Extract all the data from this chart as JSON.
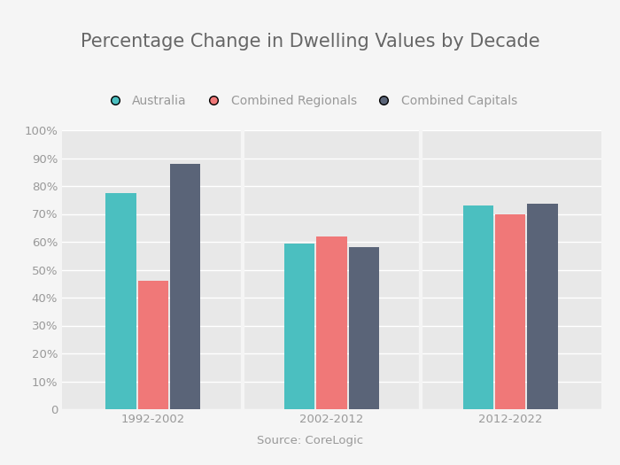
{
  "title": "Percentage Change in Dwelling Values by Decade",
  "source": "Source: CoreLogic",
  "categories": [
    "1992-2002",
    "2002-2012",
    "2012-2022"
  ],
  "series": [
    {
      "name": "Australia",
      "color": "#4BBFC0",
      "values": [
        77.5,
        59.5,
        73.0
      ]
    },
    {
      "name": "Combined Regionals",
      "color": "#F07878",
      "values": [
        46.0,
        62.0,
        70.0
      ]
    },
    {
      "name": "Combined Capitals",
      "color": "#5A6478",
      "values": [
        88.0,
        58.0,
        73.5
      ]
    }
  ],
  "ylim": [
    0,
    100
  ],
  "yticks": [
    0,
    10,
    20,
    30,
    40,
    50,
    60,
    70,
    80,
    90,
    100
  ],
  "ytick_labels": [
    "0",
    "10%",
    "20%",
    "30%",
    "40%",
    "50%",
    "60%",
    "70%",
    "80%",
    "90%",
    "100%"
  ],
  "fig_background_color": "#f5f5f5",
  "plot_background_color": "#e8e8e8",
  "grid_color": "#ffffff",
  "title_color": "#666666",
  "tick_label_color": "#999999",
  "bar_width": 0.18,
  "title_fontsize": 15,
  "legend_fontsize": 10,
  "tick_fontsize": 9.5,
  "source_fontsize": 9.5
}
